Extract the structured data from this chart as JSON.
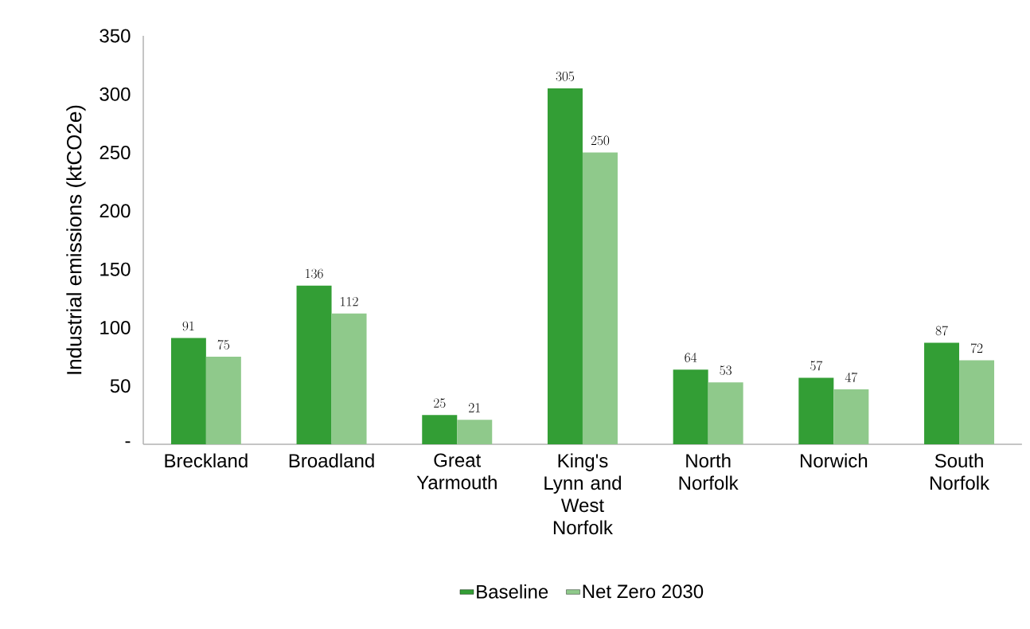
{
  "chart_data": {
    "type": "bar",
    "ylabel": "Industrial emissions (ktCO2e)",
    "categories": [
      "Breckland",
      "Broadland",
      "Great Yarmouth",
      "King's Lynn and West Norfolk",
      "North Norfolk",
      "Norwich",
      "South Norfolk"
    ],
    "series": [
      {
        "name": "Baseline",
        "color": "#339e35",
        "values": [
          91,
          136,
          25,
          305,
          64,
          57,
          87
        ]
      },
      {
        "name": "Net Zero 2030",
        "color": "#8fc98b",
        "values": [
          75,
          112,
          21,
          250,
          53,
          47,
          72
        ]
      }
    ],
    "ylim": [
      0,
      350
    ],
    "yticks": [
      {
        "value": 0,
        "label": "-"
      },
      50,
      100,
      150,
      200,
      250,
      300,
      350
    ],
    "data_labels": true,
    "grid": false,
    "legend": "bottom"
  }
}
